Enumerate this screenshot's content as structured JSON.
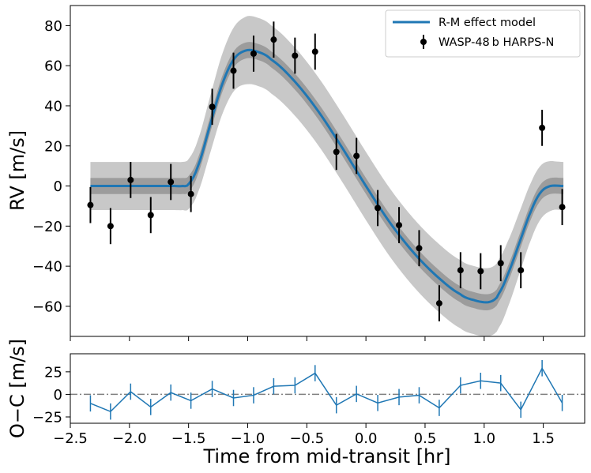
{
  "chart_data": [
    {
      "type": "scatter",
      "title": "",
      "xlabel": "",
      "ylabel": "RV [m/s]",
      "xlim": [
        -2.5,
        1.85
      ],
      "ylim": [
        -75,
        90
      ],
      "yticks": [
        80,
        60,
        40,
        20,
        0,
        -20,
        -40,
        -60
      ],
      "ytick_labels": [
        "80",
        "60",
        "40",
        "20",
        "0",
        "−20",
        "−40",
        "−60"
      ],
      "grid": false,
      "legend_placement": "top-right",
      "legend": [
        {
          "label": "R-M effect model",
          "kind": "line",
          "color": "#1f77b4"
        },
        {
          "label": "WASP-48 b HARPS-N",
          "kind": "errorbar",
          "color": "#000000"
        }
      ],
      "model": {
        "name": "R-M effect model",
        "color": "#1f77b4",
        "x": [
          -2.33,
          -1.62,
          -1.55,
          -1.5,
          -1.42,
          -1.32,
          -1.22,
          -1.12,
          -1.02,
          -0.92,
          -0.8,
          -0.6,
          -0.4,
          -0.2,
          0.0,
          0.2,
          0.4,
          0.6,
          0.8,
          0.92,
          1.02,
          1.08,
          1.12,
          1.2,
          1.3,
          1.4,
          1.48,
          1.56,
          1.67
        ],
        "y": [
          0,
          0,
          0,
          1,
          10,
          30,
          50,
          63,
          67.5,
          67,
          63,
          52,
          37,
          19,
          0,
          -18,
          -33,
          -45,
          -54,
          -57,
          -58,
          -57,
          -54,
          -44,
          -28,
          -12,
          -3,
          0,
          0
        ],
        "band_inner": 4,
        "band_outer_edge": 12,
        "band_outer_mid": 17,
        "band_colors": [
          "#c8c8c8",
          "#9c9c9c"
        ]
      },
      "points": [
        {
          "x": -2.33,
          "y": -9.5,
          "err": 9
        },
        {
          "x": -2.16,
          "y": -20,
          "err": 9
        },
        {
          "x": -1.99,
          "y": 3,
          "err": 9
        },
        {
          "x": -1.82,
          "y": -14.5,
          "err": 9
        },
        {
          "x": -1.65,
          "y": 2,
          "err": 9
        },
        {
          "x": -1.48,
          "y": -4,
          "err": 9
        },
        {
          "x": -1.3,
          "y": 39.5,
          "err": 9
        },
        {
          "x": -1.12,
          "y": 57.5,
          "err": 9
        },
        {
          "x": -0.95,
          "y": 66,
          "err": 9
        },
        {
          "x": -0.78,
          "y": 73,
          "err": 9
        },
        {
          "x": -0.6,
          "y": 65,
          "err": 9
        },
        {
          "x": -0.43,
          "y": 67,
          "err": 9
        },
        {
          "x": -0.25,
          "y": 17,
          "err": 9
        },
        {
          "x": -0.08,
          "y": 15,
          "err": 9
        },
        {
          "x": 0.1,
          "y": -11,
          "err": 9
        },
        {
          "x": 0.28,
          "y": -19.5,
          "err": 9
        },
        {
          "x": 0.45,
          "y": -31,
          "err": 9
        },
        {
          "x": 0.62,
          "y": -58.5,
          "err": 9
        },
        {
          "x": 0.8,
          "y": -42,
          "err": 9
        },
        {
          "x": 0.97,
          "y": -42.5,
          "err": 9
        },
        {
          "x": 1.14,
          "y": -38.5,
          "err": 9
        },
        {
          "x": 1.31,
          "y": -42,
          "err": 9
        },
        {
          "x": 1.49,
          "y": 29,
          "err": 9
        },
        {
          "x": 1.66,
          "y": -10.5,
          "err": 9
        }
      ]
    },
    {
      "type": "line",
      "title": "",
      "xlabel": "Time from mid-transit [hr]",
      "ylabel": "O−C [m/s]",
      "xlim": [
        -2.5,
        1.85
      ],
      "ylim": [
        -32,
        45
      ],
      "xticks": [
        -2.5,
        -2.0,
        -1.5,
        -1.0,
        -0.5,
        0.0,
        0.5,
        1.0,
        1.5
      ],
      "xtick_labels": [
        "−2.5",
        "−2.0",
        "−1.5",
        "−1.0",
        "−0.5",
        "0.0",
        "0.5",
        "1.0",
        "1.5"
      ],
      "yticks": [
        25,
        0,
        -25
      ],
      "ytick_labels": [
        "25",
        "0",
        "−25"
      ],
      "zero_line_color": "#808080",
      "color": "#1f77b4",
      "x": [
        -2.33,
        -2.16,
        -1.99,
        -1.82,
        -1.65,
        -1.48,
        -1.3,
        -1.12,
        -0.95,
        -0.78,
        -0.6,
        -0.43,
        -0.25,
        -0.08,
        0.1,
        0.28,
        0.45,
        0.62,
        0.8,
        0.97,
        1.14,
        1.31,
        1.49,
        1.66
      ],
      "y": [
        -10,
        -19,
        3,
        -14,
        2,
        -7,
        6,
        -4,
        -1,
        9,
        10,
        23.5,
        -12,
        0.5,
        -9.5,
        -3,
        -1,
        -15,
        10,
        15,
        12.5,
        -17,
        29,
        -9.5
      ],
      "err": 9
    }
  ]
}
